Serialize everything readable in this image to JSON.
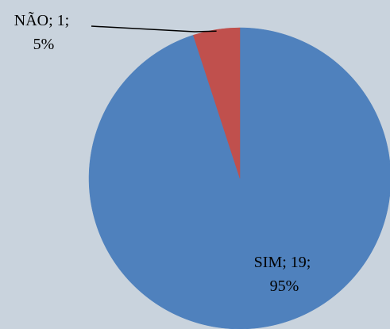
{
  "chart_data": {
    "type": "pie",
    "title": "",
    "categories": [
      "SIM",
      "NÃO"
    ],
    "values": [
      19,
      1
    ],
    "percent": [
      95,
      5
    ],
    "colors": [
      "#4f81bd",
      "#c0504d"
    ],
    "labels": [
      {
        "line1": "SIM; 19;",
        "line2": "95%"
      },
      {
        "line1": "NÃO; 1;",
        "line2": "5%"
      }
    ],
    "legend": "none",
    "start_angle_deg": 0,
    "direction": "clockwise"
  }
}
